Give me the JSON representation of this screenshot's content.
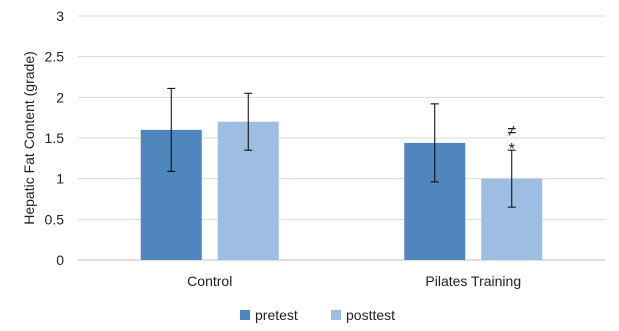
{
  "chart_data": {
    "type": "bar",
    "ylabel": "Hepatic Fat Content (grade)",
    "xlabel": "",
    "ylim": [
      0,
      3
    ],
    "yticks": [
      "0",
      "0.5",
      "1",
      "1.5",
      "2",
      "2.5",
      "3"
    ],
    "grid": true,
    "legend_position": "bottom",
    "categories": [
      "Control",
      "Pilates Training"
    ],
    "series": [
      {
        "name": "pretest",
        "color": "#4f86bd",
        "values": [
          1.6,
          1.44
        ],
        "errors": [
          0.51,
          0.48
        ]
      },
      {
        "name": "posttest",
        "color": "#9dbde2",
        "values": [
          1.7,
          1.0
        ],
        "errors": [
          0.35,
          0.35
        ]
      }
    ],
    "annotations": [
      {
        "text": "≠",
        "category": "Pilates Training",
        "series": "posttest"
      },
      {
        "text": "*",
        "category": "Pilates Training",
        "series": "posttest"
      }
    ]
  }
}
